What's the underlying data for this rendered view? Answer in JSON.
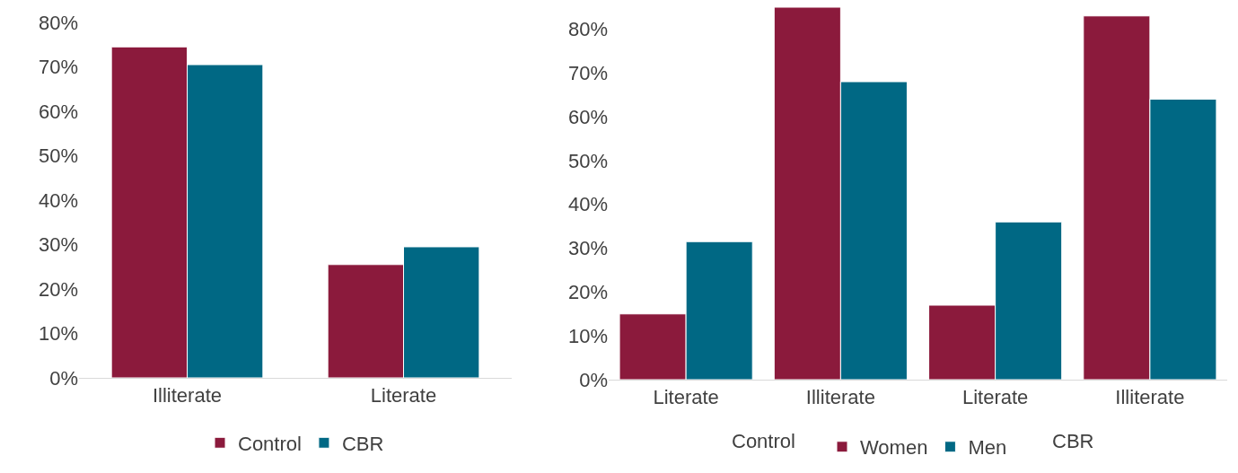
{
  "chart_data": [
    {
      "type": "bar",
      "categories": [
        "Illiterate",
        "Literate"
      ],
      "series": [
        {
          "name": "Control",
          "color": "#8b1a3c",
          "values": [
            74.5,
            25.5
          ]
        },
        {
          "name": "CBR",
          "color": "#006884",
          "values": [
            70.5,
            29.5
          ]
        }
      ],
      "ylim": [
        0,
        80
      ],
      "yticks": [
        {
          "value": 0,
          "label": "0%"
        },
        {
          "value": 10,
          "label": "10%"
        },
        {
          "value": 20,
          "label": "20%"
        },
        {
          "value": 30,
          "label": "30%"
        },
        {
          "value": 40,
          "label": "40%"
        },
        {
          "value": 50,
          "label": "50%"
        },
        {
          "value": 60,
          "label": "60%"
        },
        {
          "value": 70,
          "label": "70%"
        },
        {
          "value": 80,
          "label": "80%"
        }
      ],
      "grid": false,
      "legend": "bottom"
    },
    {
      "type": "bar",
      "categories": [
        "Literate",
        "Illiterate",
        "Literate",
        "Illiterate"
      ],
      "series": [
        {
          "name": "Women",
          "color": "#8b1a3c",
          "values": [
            15,
            85,
            17,
            83
          ]
        },
        {
          "name": "Men",
          "color": "#006884",
          "values": [
            31.5,
            68,
            36,
            64
          ]
        }
      ],
      "annotations": [
        "Control",
        "CBR"
      ],
      "ylim": [
        0,
        85
      ],
      "yticks": [
        {
          "value": 0,
          "label": "0%"
        },
        {
          "value": 10,
          "label": "10%"
        },
        {
          "value": 20,
          "label": "20%"
        },
        {
          "value": 30,
          "label": "30%"
        },
        {
          "value": 40,
          "label": "40%"
        },
        {
          "value": 50,
          "label": "50%"
        },
        {
          "value": 60,
          "label": "60%"
        },
        {
          "value": 70,
          "label": "70%"
        },
        {
          "value": 80,
          "label": "80%"
        }
      ],
      "grid": false,
      "legend": "bottom"
    }
  ]
}
